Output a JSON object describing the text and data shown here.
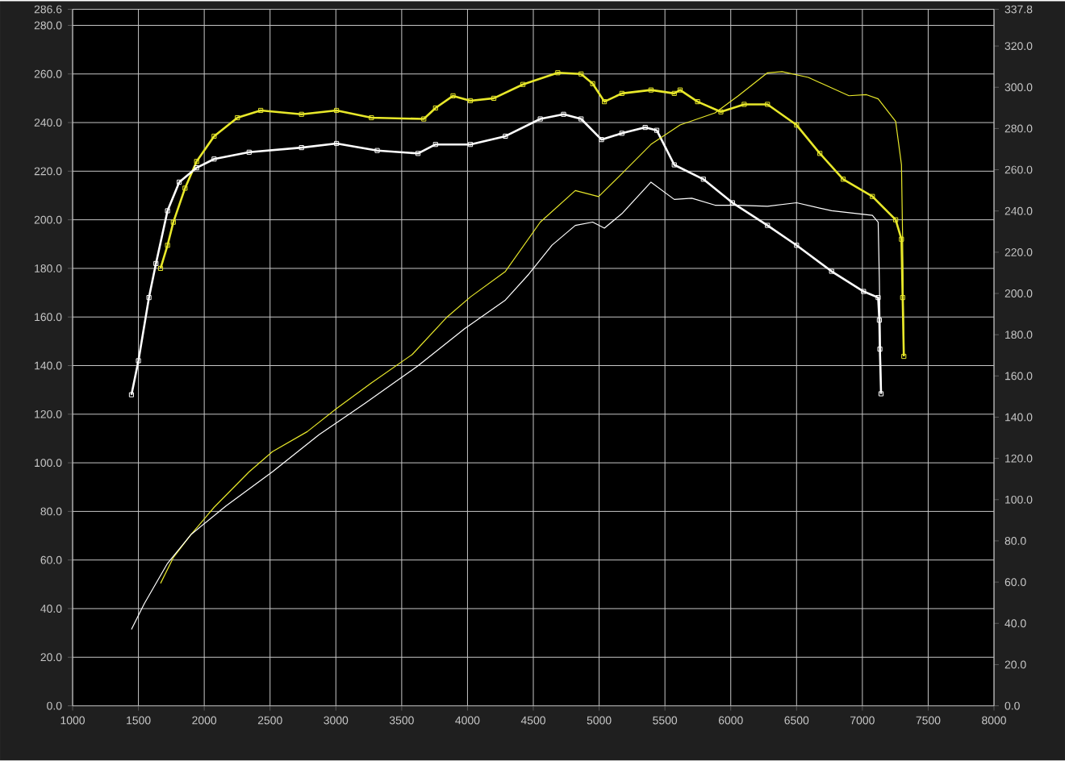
{
  "chart_data": {
    "type": "line",
    "grid": true,
    "xlim": [
      1000,
      8000
    ],
    "xticks": [
      1000,
      1500,
      2000,
      2500,
      3000,
      3500,
      4000,
      4500,
      5000,
      5500,
      6000,
      6500,
      7000,
      7500,
      8000
    ],
    "ylim": [
      0,
      286.6
    ],
    "yticks": [
      {
        "value": 0,
        "label": "0.0"
      },
      {
        "value": 20,
        "label": "20.0"
      },
      {
        "value": 40,
        "label": "40.0"
      },
      {
        "value": 60,
        "label": "60.0"
      },
      {
        "value": 80,
        "label": "80.0"
      },
      {
        "value": 100,
        "label": "100.0"
      },
      {
        "value": 120,
        "label": "120.0"
      },
      {
        "value": 140,
        "label": "140.0"
      },
      {
        "value": 160,
        "label": "160.0"
      },
      {
        "value": 180,
        "label": "180.0"
      },
      {
        "value": 200,
        "label": "200.0"
      },
      {
        "value": 220,
        "label": "220.0"
      },
      {
        "value": 240,
        "label": "240.0"
      },
      {
        "value": 260,
        "label": "260.0"
      },
      {
        "value": 280,
        "label": "280.0"
      },
      286.6
    ],
    "y2lim": [
      0,
      337.8
    ],
    "y2ticks": [
      {
        "value": 0,
        "label": "0.0"
      },
      {
        "value": 20,
        "label": "20.0"
      },
      {
        "value": 40,
        "label": "40.0"
      },
      {
        "value": 60,
        "label": "60.0"
      },
      {
        "value": 80,
        "label": "80.0"
      },
      {
        "value": 100,
        "label": "100.0"
      },
      {
        "value": 120,
        "label": "120.0"
      },
      {
        "value": 140,
        "label": "140.0"
      },
      {
        "value": 160,
        "label": "160.0"
      },
      {
        "value": 180,
        "label": "180.0"
      },
      {
        "value": 200,
        "label": "200.0"
      },
      {
        "value": 220,
        "label": "220.0"
      },
      {
        "value": 240,
        "label": "240.0"
      },
      {
        "value": 260,
        "label": "260.0"
      },
      {
        "value": 280,
        "label": "280.0"
      },
      {
        "value": 300,
        "label": "300.0"
      },
      {
        "value": 320,
        "label": "320.0"
      },
      337.8
    ],
    "series": [
      {
        "color": "#e8e82a",
        "marker": "square",
        "x": [
          1668,
          1721,
          1765,
          1854,
          1942,
          2075,
          2252,
          2429,
          2739,
          3005,
          3270,
          3668,
          3757,
          3890,
          4022,
          4200,
          4421,
          4686,
          4863,
          4951,
          5040,
          5173,
          5394,
          5571,
          5615,
          5748,
          5925,
          6102,
          6279,
          6500,
          6677,
          6854,
          7076,
          7253,
          7297,
          7306,
          7315
        ],
        "values": [
          180,
          189.5,
          199,
          213,
          224,
          234.4,
          242,
          245,
          243.4,
          245,
          242,
          241.5,
          246,
          251,
          249,
          250,
          255.7,
          260.5,
          260,
          256,
          248.6,
          252,
          253.4,
          252,
          253.4,
          248.6,
          244.4,
          247.5,
          247.5,
          239,
          227.3,
          216.7,
          209.6,
          200,
          192,
          168,
          143.8
        ]
      },
      {
        "color": "#ffffff",
        "marker": "square",
        "x": [
          1447,
          1500,
          1580,
          1633,
          1721,
          1810,
          1942,
          2075,
          2341,
          2739,
          3005,
          3314,
          3624,
          3757,
          4022,
          4288,
          4553,
          4730,
          4863,
          5018,
          5173,
          5350,
          5438,
          5571,
          5792,
          6013,
          6279,
          6500,
          6766,
          7009,
          7120,
          7129,
          7133,
          7142
        ],
        "values": [
          128,
          142,
          168,
          182,
          203.7,
          215.5,
          221.4,
          225,
          227.8,
          229.7,
          231.4,
          228.5,
          227.3,
          231,
          231,
          234.4,
          241.5,
          243.4,
          241.5,
          233,
          235.6,
          238,
          236.8,
          222.6,
          216.7,
          207,
          197.7,
          189.5,
          178.8,
          170.5,
          168,
          158.7,
          146.8,
          128.4
        ]
      },
      {
        "color": "#e8e82a",
        "axis": "y2",
        "x": [
          1668,
          1765,
          1898,
          2075,
          2341,
          2518,
          2783,
          3005,
          3270,
          3580,
          3845,
          4022,
          4288,
          4553,
          4819,
          4996,
          5173,
          5394,
          5615,
          5881,
          6058,
          6279,
          6390,
          6589,
          6898,
          7031,
          7120,
          7253,
          7297,
          7306,
          7315
        ],
        "values": [
          59.4,
          71.9,
          83,
          96.3,
          113.5,
          123.3,
          133,
          144.2,
          156.6,
          170.4,
          188.6,
          198.3,
          210.7,
          234.6,
          249.9,
          247,
          258.1,
          272.3,
          281.7,
          287.6,
          295.9,
          307,
          307.6,
          304.8,
          295.9,
          296.4,
          294.4,
          283.4,
          262.4,
          226.1,
          170.3
        ]
      },
      {
        "color": "#ffffff",
        "axis": "y2",
        "x": [
          1447,
          1544,
          1721,
          1898,
          2164,
          2518,
          2872,
          3226,
          3624,
          3978,
          4288,
          4465,
          4642,
          4819,
          4951,
          5040,
          5173,
          5394,
          5571,
          5704,
          5881,
          6058,
          6279,
          6500,
          6766,
          7076,
          7120,
          7129,
          7142
        ],
        "values": [
          37.1,
          49.5,
          69.1,
          83,
          96.9,
          113.5,
          131.5,
          146.9,
          164.9,
          182.9,
          196.8,
          209.3,
          223.4,
          233,
          234.6,
          231.7,
          238.7,
          254,
          245.6,
          246.2,
          242.8,
          242.8,
          242.3,
          244,
          240.1,
          237.9,
          234.6,
          206.6,
          151.3
        ]
      }
    ]
  }
}
